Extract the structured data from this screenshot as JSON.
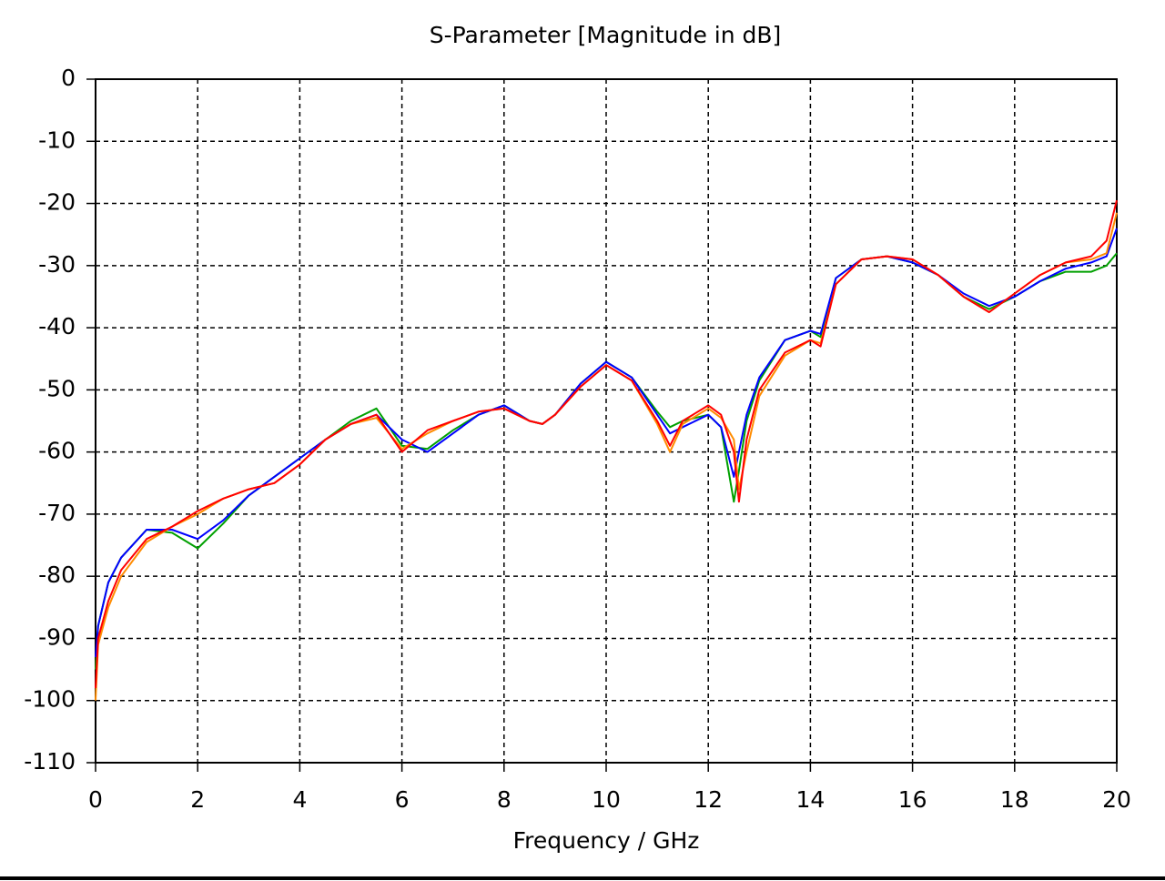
{
  "chart_data": {
    "type": "line",
    "title": "S-Parameter [Magnitude in dB]",
    "x_label": "Frequency / GHz",
    "x": [
      0,
      0.05,
      0.25,
      0.5,
      1,
      1.5,
      2,
      2.5,
      3,
      3.5,
      4,
      4.5,
      5,
      5.5,
      6,
      6.5,
      7,
      7.5,
      8,
      8.5,
      8.75,
      9,
      9.5,
      10,
      10.5,
      11,
      11.25,
      11.5,
      12,
      12.25,
      12.5,
      12.6,
      12.75,
      13,
      13.5,
      14,
      14.2,
      14.5,
      15,
      15.5,
      16,
      16.5,
      17,
      17.5,
      18,
      18.5,
      19,
      19.5,
      19.8,
      20
    ],
    "series": [
      {
        "color": "#00a000",
        "values": [
          -95,
          -88,
          -81,
          -77,
          -72.5,
          -73,
          -75.5,
          -71.5,
          -67,
          -64,
          -61,
          -58,
          -55,
          -53,
          -59,
          -59.5,
          -56.5,
          -54,
          -52.5,
          -55,
          -55.5,
          -54,
          -49,
          -45.5,
          -48,
          -53.5,
          -56,
          -55,
          -54,
          -56,
          -68,
          -63,
          -55,
          -48.5,
          -42,
          -40.5,
          -41.5,
          -32,
          -29,
          -28.5,
          -29.5,
          -31.5,
          -35,
          -37,
          -35,
          -32.5,
          -31,
          -31,
          -30,
          -28
        ]
      },
      {
        "color": "#0000ff",
        "values": [
          -93,
          -88,
          -81,
          -77,
          -72.5,
          -72.5,
          -74,
          -71,
          -67,
          -64,
          -61,
          -58,
          -55.5,
          -54,
          -58,
          -60,
          -57,
          -54,
          -52.5,
          -55,
          -55.5,
          -54,
          -49,
          -45.5,
          -48,
          -54,
          -57,
          -56,
          -54,
          -56,
          -64,
          -60,
          -54,
          -48,
          -42,
          -40.5,
          -41,
          -32,
          -29,
          -28.5,
          -29.5,
          -31.5,
          -34.5,
          -36.5,
          -35,
          -32.5,
          -30.5,
          -29.5,
          -28.5,
          -24
        ]
      },
      {
        "color": "#ff8c00",
        "values": [
          -100,
          -91,
          -85,
          -80,
          -74.5,
          -72,
          -70,
          -67.5,
          -66,
          -65,
          -62,
          -58,
          -55.5,
          -54.5,
          -59.5,
          -57,
          -55,
          -53.5,
          -53,
          -55,
          -55.5,
          -54,
          -49.5,
          -46,
          -48.5,
          -55.5,
          -60,
          -55.5,
          -53,
          -54.5,
          -58,
          -66,
          -60,
          -51,
          -44.5,
          -42,
          -42.5,
          -33,
          -29,
          -28.5,
          -29,
          -31.5,
          -35,
          -37.5,
          -34.5,
          -31.5,
          -29.5,
          -29,
          -28,
          -21.5
        ]
      },
      {
        "color": "#ff0000",
        "values": [
          -98,
          -90,
          -84,
          -79,
          -74,
          -72,
          -69.5,
          -67.5,
          -66,
          -65,
          -62,
          -58,
          -55.5,
          -54,
          -60,
          -56.5,
          -55,
          -53.5,
          -53,
          -55,
          -55.5,
          -54,
          -49.5,
          -46,
          -48.5,
          -55,
          -59,
          -55,
          -52.5,
          -54,
          -60,
          -68,
          -58,
          -50,
          -44,
          -42,
          -43,
          -33,
          -29,
          -28.5,
          -29,
          -31.5,
          -35,
          -37.5,
          -34.5,
          -31.5,
          -29.5,
          -28.5,
          -26,
          -19.5
        ]
      }
    ],
    "xlim": [
      0,
      20
    ],
    "ylim": [
      -110,
      0
    ],
    "xticks": [
      0,
      2,
      4,
      6,
      8,
      10,
      12,
      14,
      16,
      18,
      20
    ],
    "yticks": [
      0,
      -10,
      -20,
      -30,
      -40,
      -50,
      -60,
      -70,
      -80,
      -90,
      -100,
      -110
    ],
    "grid": true
  }
}
